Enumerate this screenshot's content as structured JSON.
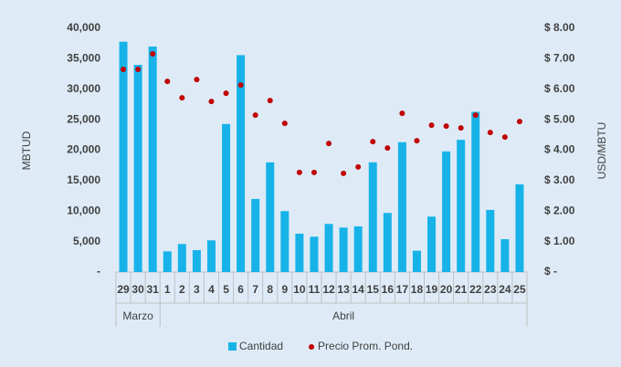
{
  "chart_data": {
    "type": "combo",
    "y_label": "MBTUD",
    "y2_label": "USD/MBTU",
    "groups": [
      {
        "name": "Marzo",
        "categories": [
          "29",
          "30",
          "31"
        ]
      },
      {
        "name": "Abril",
        "categories": [
          "1",
          "2",
          "3",
          "4",
          "5",
          "6",
          "7",
          "8",
          "9",
          "10",
          "11",
          "12",
          "13",
          "14",
          "15",
          "16",
          "17",
          "18",
          "19",
          "20",
          "21",
          "22",
          "23",
          "24",
          "25"
        ]
      }
    ],
    "series": [
      {
        "name": "Cantidad",
        "type": "bar",
        "color": "#17b3e8",
        "values": [
          37800,
          34000,
          37000,
          3400,
          4600,
          3600,
          5200,
          24300,
          35600,
          12000,
          18000,
          10000,
          6300,
          5800,
          7900,
          7300,
          7500,
          18000,
          9700,
          21300,
          3500,
          9100,
          19800,
          21700,
          26300,
          10200,
          5400,
          14400
        ]
      },
      {
        "name": "Precio Prom. Pond.",
        "type": "scatter",
        "axis": "y2",
        "color": "#c00000",
        "values": [
          6.65,
          6.65,
          7.16,
          6.26,
          5.72,
          6.32,
          5.6,
          5.87,
          6.14,
          5.15,
          5.63,
          4.88,
          3.27,
          3.27,
          4.22,
          3.24,
          3.45,
          4.28,
          4.07,
          5.21,
          4.31,
          4.82,
          4.79,
          4.73,
          5.15,
          4.58,
          4.43,
          4.94
        ]
      }
    ],
    "ylim": [
      0,
      40000
    ],
    "yticks": [
      {
        "value": 0,
        "label": "-"
      },
      {
        "value": 5000,
        "label": "5,000"
      },
      {
        "value": 10000,
        "label": "10,000"
      },
      {
        "value": 15000,
        "label": "15,000"
      },
      {
        "value": 20000,
        "label": "20,000"
      },
      {
        "value": 25000,
        "label": "25,000"
      },
      {
        "value": 30000,
        "label": "30,000"
      },
      {
        "value": 35000,
        "label": "35,000"
      },
      {
        "value": 40000,
        "label": "40,000"
      }
    ],
    "y2lim": [
      0,
      8
    ],
    "y2ticks": [
      {
        "value": 0,
        "label": "$ -"
      },
      {
        "value": 1,
        "label": "$ 1.00"
      },
      {
        "value": 2,
        "label": "$ 2.00"
      },
      {
        "value": 3,
        "label": "$ 3.00"
      },
      {
        "value": 4,
        "label": "$ 4.00"
      },
      {
        "value": 5,
        "label": "$ 5.00"
      },
      {
        "value": 6,
        "label": "$ 6.00"
      },
      {
        "value": 7,
        "label": "$ 7.00"
      },
      {
        "value": 8,
        "label": "$ 8.00"
      }
    ],
    "legend": "bottom"
  }
}
